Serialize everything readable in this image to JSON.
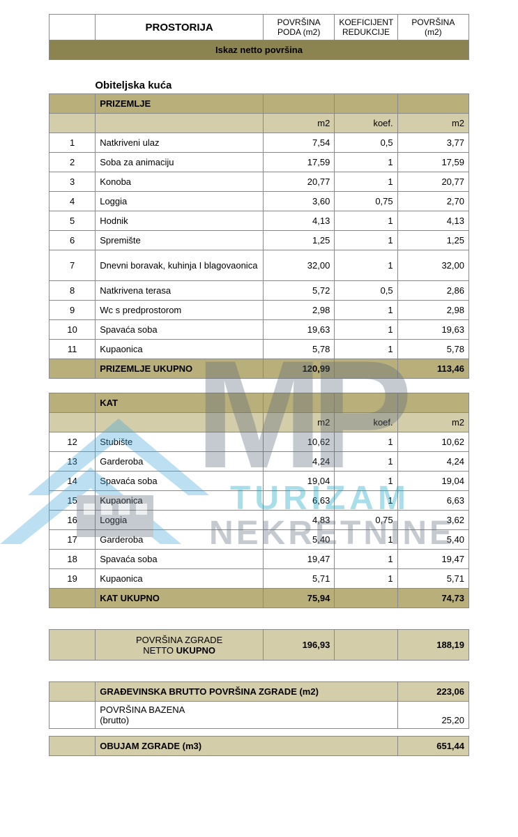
{
  "colors": {
    "bar_bg": "#8b8450",
    "olive_bg": "#b8af7a",
    "light_olive_bg": "#d4cdaa",
    "border": "#888888",
    "wm_blue": "#43a8d8",
    "wm_dark": "#5c6a7a",
    "wm_teal": "#0aa3c2"
  },
  "header": {
    "c1": "",
    "c2": "PROSTORIJA",
    "c3a": "POVRŠINA",
    "c3b": "PODA (m2)",
    "c4a": "KOEFICIJENT",
    "c4b": "REDUKCIJE",
    "c5a": "POVRŠINA",
    "c5b": "(m2)"
  },
  "bar_title": "Iskaz netto površina",
  "house_title": "Obiteljska kuća",
  "prizemlje": {
    "label": "PRIZEMLJE",
    "sub": {
      "m2": "m2",
      "koef": "koef.",
      "m2b": "m2"
    },
    "rows": [
      {
        "n": "1",
        "name": "Natkriveni ulaz",
        "a": "7,54",
        "k": "0,5",
        "b": "3,77"
      },
      {
        "n": "2",
        "name": "Soba za animaciju",
        "a": "17,59",
        "k": "1",
        "b": "17,59"
      },
      {
        "n": "3",
        "name": "Konoba",
        "a": "20,77",
        "k": "1",
        "b": "20,77"
      },
      {
        "n": "4",
        "name": "Loggia",
        "a": "3,60",
        "k": "0,75",
        "b": "2,70"
      },
      {
        "n": "5",
        "name": "Hodnik",
        "a": "4,13",
        "k": "1",
        "b": "4,13"
      },
      {
        "n": "6",
        "name": "Spremište",
        "a": "1,25",
        "k": "1",
        "b": "1,25"
      },
      {
        "n": "7",
        "name": "Dnevni boravak, kuhinja I blagovaonica",
        "a": "32,00",
        "k": "1",
        "b": "32,00"
      },
      {
        "n": "8",
        "name": "Natkrivena terasa",
        "a": "5,72",
        "k": "0,5",
        "b": "2,86"
      },
      {
        "n": "9",
        "name": "Wc s predprostorom",
        "a": "2,98",
        "k": "1",
        "b": "2,98"
      },
      {
        "n": "10",
        "name": "Spavaća soba",
        "a": "19,63",
        "k": "1",
        "b": "19,63"
      },
      {
        "n": "11",
        "name": "Kupaonica",
        "a": "5,78",
        "k": "1",
        "b": "5,78"
      }
    ],
    "total": {
      "label": "PRIZEMLJE UKUPNO",
      "a": "120,99",
      "k": "",
      "b": "113,46"
    }
  },
  "kat": {
    "label": "KAT",
    "sub": {
      "m2": "m2",
      "koef": "koef.",
      "m2b": "m2"
    },
    "rows": [
      {
        "n": "12",
        "name": "Stubište",
        "a": "10,62",
        "k": "1",
        "b": "10,62"
      },
      {
        "n": "13",
        "name": "Garderoba",
        "a": "4,24",
        "k": "1",
        "b": "4,24"
      },
      {
        "n": "14",
        "name": "Spavaća soba",
        "a": "19,04",
        "k": "1",
        "b": "19,04"
      },
      {
        "n": "15",
        "name": "Kupaonica",
        "a": "6,63",
        "k": "1",
        "b": "6,63"
      },
      {
        "n": "16",
        "name": "Loggia",
        "a": "4,83",
        "k": "0,75",
        "b": "3,62"
      },
      {
        "n": "17",
        "name": "Garderoba",
        "a": "5,40",
        "k": "1",
        "b": "5,40"
      },
      {
        "n": "18",
        "name": "Spavaća soba",
        "a": "19,47",
        "k": "1",
        "b": "19,47"
      },
      {
        "n": "19",
        "name": "Kupaonica",
        "a": "5,71",
        "k": "1",
        "b": "5,71"
      }
    ],
    "total": {
      "label": "KAT UKUPNO",
      "a": "75,94",
      "k": "",
      "b": "74,73"
    }
  },
  "netto": {
    "label1": "POVRŠINA ZGRADE",
    "label2": "NETTO UKUPNO",
    "a": "196,93",
    "b": "188,19"
  },
  "brutto": {
    "label": "GRAĐEVINSKA BRUTTO POVRŠINA ZGRADE (m2)",
    "val": "223,06"
  },
  "bazen": {
    "label1": "POVRŠINA BAZENA",
    "label2": "(brutto)",
    "val": "25,20"
  },
  "obujam": {
    "label": "OBUJAM ZGRADE (m3)",
    "val": "651,44"
  },
  "watermark": {
    "text1": "TURIZAM",
    "text2": "NEKRETNINE"
  }
}
